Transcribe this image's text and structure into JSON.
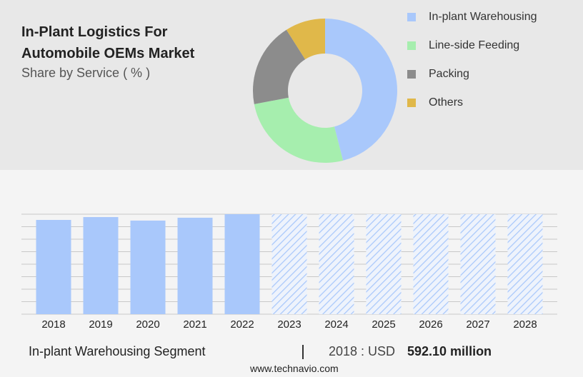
{
  "chart_data": [
    {
      "type": "pie",
      "title": "In-Plant Logistics For Automobile OEMs Market",
      "subtitle": "Share by Service ( % )",
      "categories": [
        "In-plant Warehousing",
        "Line-side Feeding",
        "Packing",
        "Others"
      ],
      "values": [
        46,
        26,
        19,
        9
      ],
      "colors": [
        "#a9c8fb",
        "#a6eeae",
        "#8c8c8c",
        "#e0b84a"
      ]
    },
    {
      "type": "bar",
      "categories": [
        "2018",
        "2019",
        "2020",
        "2021",
        "2022",
        "2023",
        "2024",
        "2025",
        "2026",
        "2027",
        "2028"
      ],
      "values": [
        592.1,
        610,
        588,
        606,
        628,
        null,
        null,
        null,
        null,
        null,
        null
      ],
      "color": "#a9c8fb",
      "ylim": [
        0,
        628
      ],
      "yticks": [
        0,
        78.5,
        157,
        235.5,
        314,
        392.5,
        471,
        549.5,
        628
      ],
      "grid": true
    }
  ],
  "footer": {
    "segment": "In-plant Warehousing Segment",
    "year_label": "2018 : USD",
    "value_label": "592.10 million",
    "source": "www.technavio.com"
  }
}
